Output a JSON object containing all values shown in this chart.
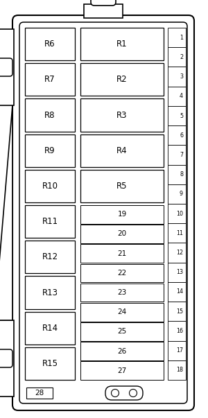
{
  "fig_width": 3.0,
  "fig_height": 6.03,
  "bg_color": "#ffffff",
  "line_color": "#000000",
  "relay_labels_left": [
    "R6",
    "R7",
    "R8",
    "R9",
    "R10",
    "R11",
    "R12",
    "R13",
    "R14",
    "R15"
  ],
  "relay_labels_right_top": [
    "R1",
    "R2",
    "R3",
    "R4",
    "R5"
  ],
  "fuse_labels_small": [
    "19",
    "20",
    "21",
    "22",
    "23",
    "24",
    "25",
    "26",
    "27"
  ],
  "fuse_number_labels": [
    "1",
    "2",
    "3",
    "4",
    "5",
    "6",
    "7",
    "8",
    "9",
    "10",
    "11",
    "12",
    "13",
    "14",
    "15",
    "16",
    "17",
    "18"
  ],
  "fuse28_label": "28"
}
